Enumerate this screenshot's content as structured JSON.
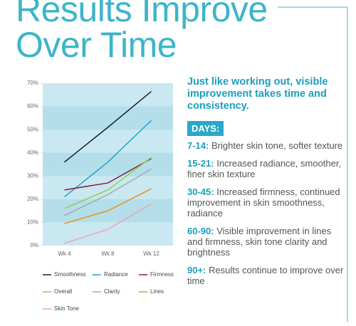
{
  "title": "Results Improve Over Time",
  "chart_data": {
    "type": "line",
    "categories": [
      "Wk 4",
      "Wk 8",
      "Wk 12"
    ],
    "ylim": [
      0,
      70
    ],
    "yticks": [
      {
        "value": 0,
        "label": "0%"
      },
      {
        "value": 10,
        "label": "10%"
      },
      {
        "value": 20,
        "label": "20%"
      },
      {
        "value": 30,
        "label": "30%"
      },
      {
        "value": 40,
        "label": "40%"
      },
      {
        "value": 50,
        "label": "50%"
      },
      {
        "value": 60,
        "label": "60%"
      },
      {
        "value": 70,
        "label": "70%"
      }
    ],
    "series": [
      {
        "name": "Smoothness",
        "color": "#1b2038",
        "values": [
          36,
          51,
          66.5
        ]
      },
      {
        "name": "Radiance",
        "color": "#1fa3c9",
        "values": [
          21,
          36,
          54
        ]
      },
      {
        "name": "Firmness",
        "color": "#8a1c40",
        "values": [
          24,
          27,
          37.5
        ]
      },
      {
        "name": "Overall",
        "color": "#8fd14f",
        "values": [
          16,
          24,
          38
        ]
      },
      {
        "name": "Clarity",
        "color": "#a9a9a9",
        "values": [
          13,
          22,
          33
        ]
      },
      {
        "name": "Lines",
        "color": "#e8941a",
        "values": [
          9.5,
          15,
          24.5
        ]
      },
      {
        "name": "Skin Tone",
        "color": "#f2a1b9",
        "values": [
          1,
          7,
          18
        ]
      }
    ]
  },
  "sidebar": {
    "heading": "Just like working out, visible improvement takes time and consistency.",
    "badge": "DAYS:",
    "items": [
      {
        "days": "7-14:",
        "text": "Brighter skin tone, softer texture"
      },
      {
        "days": "15-21:",
        "text": "Increased radiance, smoother, finer skin texture"
      },
      {
        "days": "30-45:",
        "text": "Increased firmness, continued improvement in skin smoothness, radiance"
      },
      {
        "days": "60-90:",
        "text": "Visible improvement in lines and firmness, skin tone clarity and brightness"
      },
      {
        "days": "90+:",
        "text": "Results continue to improve over time"
      }
    ]
  }
}
